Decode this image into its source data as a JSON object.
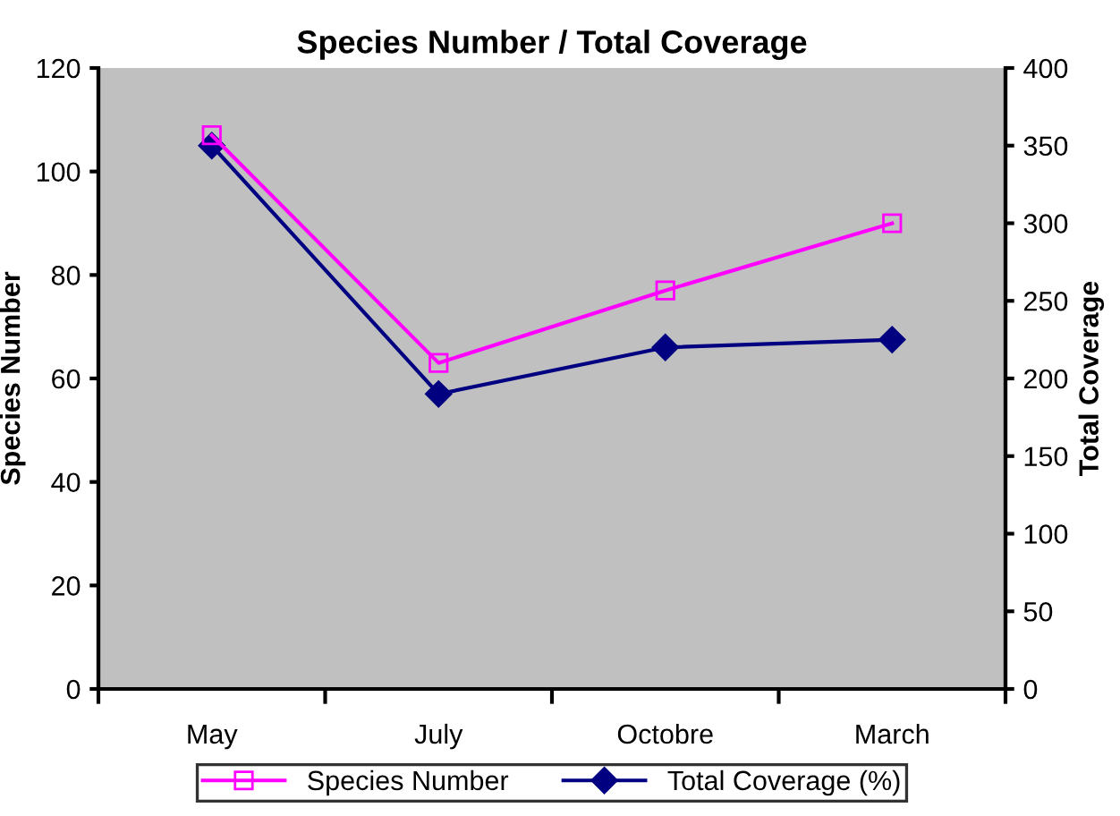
{
  "chart_data": {
    "type": "line",
    "title": "Species Number / Total Coverage",
    "ylabel": "Species Number",
    "y2label": "Total Coverage",
    "categories": [
      "May",
      "July",
      "Octobre",
      "March"
    ],
    "series": [
      {
        "name": "Species Number",
        "color": "#ff00ff",
        "values": [
          107,
          63,
          77,
          90
        ],
        "marker": "square"
      },
      {
        "name": "Total Coverage (%)",
        "color": "#000080",
        "values": [
          350,
          190,
          220,
          225
        ],
        "axis": "y2",
        "marker": "diamond"
      }
    ],
    "ylim": [
      0,
      120
    ],
    "yticks": [
      0,
      20,
      40,
      60,
      80,
      100,
      120
    ],
    "y2lim": [
      0,
      400
    ],
    "y2ticks": [
      0,
      50,
      100,
      150,
      200,
      250,
      300,
      350,
      400
    ],
    "grid": false,
    "legend": "bottom"
  }
}
